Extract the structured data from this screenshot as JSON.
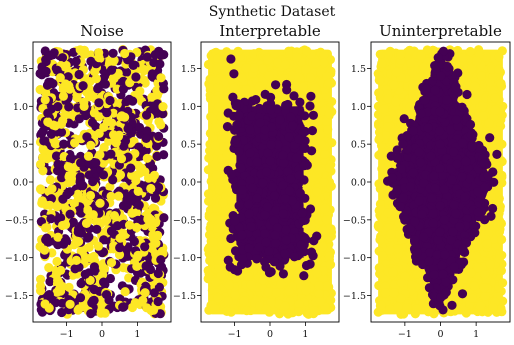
{
  "figure": {
    "suptitle": "Synthetic Dataset"
  },
  "colors": {
    "class_0": "#440154",
    "class_1": "#fde725",
    "background": "#ffffff",
    "axes": "#000000"
  },
  "chart_data": [
    {
      "type": "scatter",
      "title": "Noise",
      "pattern": "random",
      "xlabel": "",
      "ylabel": "",
      "xlim": [
        -1.95,
        1.95
      ],
      "ylim": [
        -1.85,
        1.85
      ],
      "x_ticks": [
        -1,
        0,
        1
      ],
      "x_tick_labels": [
        "−1",
        "0",
        "1"
      ],
      "y_ticks": [
        -1.5,
        -1.0,
        -0.5,
        0.0,
        0.5,
        1.0,
        1.5
      ],
      "y_tick_labels": [
        "−1.5",
        "−1.0",
        "−0.5",
        "0.0",
        "0.5",
        "1.0",
        "1.5"
      ],
      "x_range": [
        -1.75,
        1.75
      ],
      "y_range": [
        -1.75,
        1.75
      ],
      "class_0_fraction": 0.5
    },
    {
      "type": "scatter",
      "title": "Interpretable",
      "pattern": "box",
      "xlabel": "",
      "ylabel": "",
      "xlim": [
        -1.95,
        1.95
      ],
      "ylim": [
        -1.85,
        1.85
      ],
      "x_ticks": [
        -1,
        0,
        1
      ],
      "x_tick_labels": [
        "−1",
        "0",
        "1"
      ],
      "y_ticks": [
        -1.5,
        -1.0,
        -0.5,
        0.0,
        0.5,
        1.0,
        1.5
      ],
      "y_tick_labels": [
        "−1.5",
        "−1.0",
        "−0.5",
        "0.0",
        "0.5",
        "1.0",
        "1.5"
      ],
      "x_range": [
        -1.75,
        1.75
      ],
      "y_range": [
        -1.75,
        1.75
      ],
      "region_x": [
        -1.0,
        1.0
      ],
      "region_y": [
        -1.05,
        1.05
      ]
    },
    {
      "type": "scatter",
      "title": "Uninterpretable",
      "pattern": "diamond",
      "xlabel": "",
      "ylabel": "",
      "xlim": [
        -1.95,
        1.95
      ],
      "ylim": [
        -1.85,
        1.85
      ],
      "x_ticks": [
        -1,
        0,
        1
      ],
      "x_tick_labels": [
        "−1",
        "0",
        "1"
      ],
      "y_ticks": [
        -1.5,
        -1.0,
        -0.5,
        0.0,
        0.5,
        1.0,
        1.5
      ],
      "y_tick_labels": [
        "−1.5",
        "−1.0",
        "−0.5",
        "0.0",
        "0.5",
        "1.0",
        "1.5"
      ],
      "x_range": [
        -1.75,
        1.75
      ],
      "y_range": [
        -1.75,
        1.75
      ],
      "diamond_half_width": 1.5,
      "diamond_half_height": 1.75
    }
  ]
}
